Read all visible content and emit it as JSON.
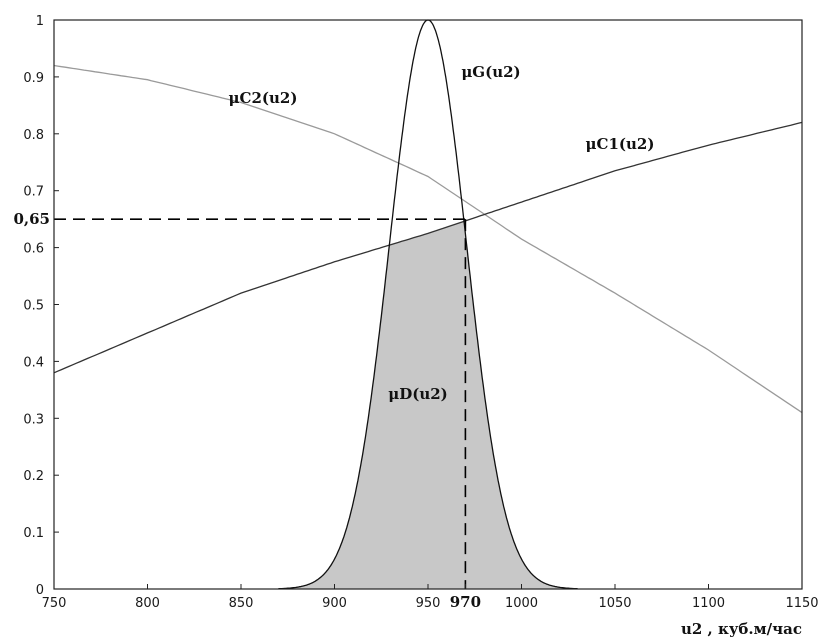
{
  "chart_data": {
    "type": "line",
    "title": "",
    "xlabel": "u2 , куб.м/час",
    "ylabel": "",
    "xlim": [
      750,
      1150
    ],
    "ylim": [
      0,
      1
    ],
    "x_ticks": [
      "750",
      "800",
      "850",
      "900",
      "950",
      "970",
      "1000",
      "1050",
      "1100",
      "1150"
    ],
    "y_ticks": [
      "0",
      "0.1",
      "0.2",
      "0.3",
      "0.4",
      "0.5",
      "0.6",
      "0,65",
      "0.7",
      "0.8",
      "0.9",
      "1"
    ],
    "grid": false,
    "series": [
      {
        "name": "μC2(u2)",
        "color": "#9a9a9a",
        "x": [
          750,
          800,
          850,
          900,
          950,
          1000,
          1050,
          1100,
          1150
        ],
        "y": [
          0.92,
          0.895,
          0.855,
          0.8,
          0.725,
          0.615,
          0.52,
          0.42,
          0.31
        ]
      },
      {
        "name": "μC1(u2)",
        "color": "#333333",
        "x": [
          750,
          800,
          850,
          900,
          950,
          1000,
          1050,
          1100,
          1150
        ],
        "y": [
          0.38,
          0.45,
          0.52,
          0.575,
          0.625,
          0.68,
          0.735,
          0.78,
          0.82
        ]
      },
      {
        "name": "μG(u2)",
        "color": "#111111",
        "type": "gaussian",
        "peak_x": 950,
        "peak_y": 1.0,
        "x": [
          870,
          890,
          910,
          920,
          930,
          940,
          950,
          960,
          970,
          980,
          990,
          1010,
          1030
        ],
        "y": [
          0.0,
          0.04,
          0.24,
          0.44,
          0.69,
          0.91,
          1.0,
          0.91,
          0.65,
          0.44,
          0.24,
          0.04,
          0.0
        ]
      }
    ],
    "area": {
      "name": "μD(u2)",
      "color": "#c8c8c8",
      "description": "min(μG, max-limited by μC1/μC2 up to 0.65)"
    },
    "annotations": [
      {
        "text": "0,65",
        "y": 0.65
      },
      {
        "text": "970",
        "x": 970
      }
    ],
    "intersection": {
      "x": 970,
      "y": 0.65
    }
  }
}
